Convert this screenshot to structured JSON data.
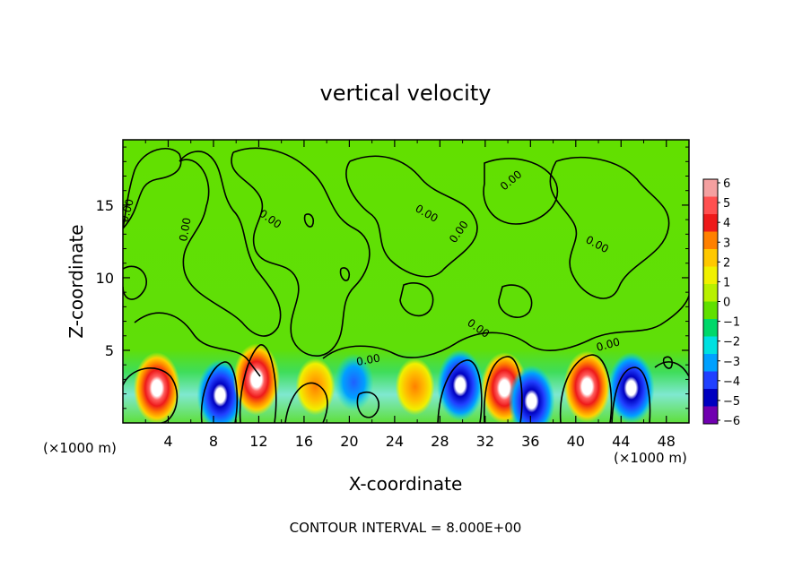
{
  "chart_data": {
    "type": "heatmap",
    "title": "vertical velocity",
    "xlabel": "X-coordinate",
    "ylabel": "Z-coordinate",
    "x_unit_left": "(×1000 m)",
    "x_unit_right": "(×1000 m)",
    "xlim": [
      0,
      50
    ],
    "ylim": [
      0,
      19.5
    ],
    "x_ticks": [
      4,
      8,
      12,
      16,
      20,
      24,
      28,
      32,
      36,
      40,
      44,
      48
    ],
    "y_ticks": [
      5,
      10,
      15
    ],
    "colorbar": {
      "levels": [
        6,
        5,
        4,
        3,
        2,
        1,
        0,
        -1,
        -2,
        -3,
        -4,
        -5,
        -6
      ],
      "colors": [
        "#f4a0a0",
        "#ff5050",
        "#ee1a1a",
        "#ff8000",
        "#ffc800",
        "#f0f000",
        "#b8f000",
        "#60e000",
        "#00d86a",
        "#00e0e0",
        "#00a0ff",
        "#2040ff",
        "#0000c0",
        "#7000b0"
      ]
    },
    "contour_labels": [
      "0.00",
      "0.00",
      "0.00",
      "0.00",
      "0.00",
      "0.00",
      "0.00",
      "0.00",
      "0.00",
      "0.00",
      "0.00",
      "0.00"
    ],
    "cells": [
      {
        "x": 3.0,
        "z": 2.4,
        "w": 1.0
      },
      {
        "x": 8.6,
        "z": 1.9,
        "w": -1.0
      },
      {
        "x": 11.8,
        "z": 3.0,
        "w": 1.0
      },
      {
        "x": 17.0,
        "z": 2.5,
        "w": 0.6
      },
      {
        "x": 20.4,
        "z": 2.8,
        "w": -0.6
      },
      {
        "x": 25.8,
        "z": 2.5,
        "w": 0.45
      },
      {
        "x": 29.8,
        "z": 2.6,
        "w": -0.9
      },
      {
        "x": 33.7,
        "z": 2.4,
        "w": 1.0
      },
      {
        "x": 36.1,
        "z": 1.5,
        "w": -0.9
      },
      {
        "x": 41.0,
        "z": 2.5,
        "w": 1.0
      },
      {
        "x": 44.9,
        "z": 2.4,
        "w": -1.0
      }
    ],
    "footer": "CONTOUR INTERVAL = 8.000E+00"
  }
}
